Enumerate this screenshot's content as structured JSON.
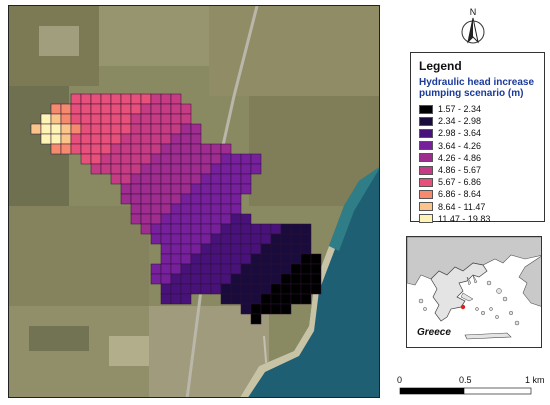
{
  "north": {
    "label": "N",
    "icon": "north-arrow-icon"
  },
  "legend": {
    "title": "Legend",
    "subtitle": "Hydraulic head increase pumping scenario (m)",
    "items": [
      {
        "label": "1.57 - 2.34",
        "color": "#000000"
      },
      {
        "label": "2.34 - 2.98",
        "color": "#1a0b3d"
      },
      {
        "label": "2.98 - 3.64",
        "color": "#48127a"
      },
      {
        "label": "3.64 - 4.26",
        "color": "#76209c"
      },
      {
        "label": "4.26 - 4.86",
        "color": "#9e2d8f"
      },
      {
        "label": "4.86 - 5.67",
        "color": "#c63c84"
      },
      {
        "label": "5.67 - 6.86",
        "color": "#e6507a"
      },
      {
        "label": "6.86 - 8.64",
        "color": "#f58a6e"
      },
      {
        "label": "8.64 - 11.47",
        "color": "#fbc48a"
      },
      {
        "label": "11.47 - 19.83",
        "color": "#fdf4b6"
      }
    ]
  },
  "inset": {
    "label": "Greece"
  },
  "scalebar": {
    "labels": [
      "0",
      "0.5",
      "1 km"
    ]
  }
}
